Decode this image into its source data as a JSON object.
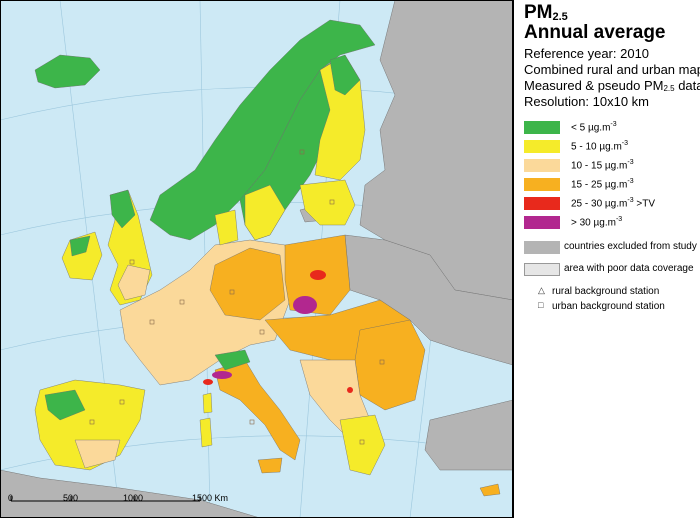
{
  "title": {
    "main": "PM",
    "subscript": "2.5",
    "line2": "Annual average"
  },
  "meta": {
    "reference_year": "Reference year: 2010",
    "map_type": "Combined rural and urban map",
    "data_prefix": "Measured & pseudo PM",
    "data_sub": "2.5",
    "data_suffix": " data",
    "resolution": "Resolution: 10x10 km"
  },
  "legend": {
    "classes": [
      {
        "label": "<  5",
        "unit": "µg.m",
        "exp": "-3",
        "extra": "",
        "color": "#3db54a"
      },
      {
        "label": "5 - 10",
        "unit": "µg.m",
        "exp": "-3",
        "extra": "",
        "color": "#f5eb2a"
      },
      {
        "label": "10 - 15",
        "unit": "µg.m",
        "exp": "-3",
        "extra": "",
        "color": "#fbd99a"
      },
      {
        "label": "15 - 25",
        "unit": "µg.m",
        "exp": "-3",
        "extra": "",
        "color": "#f7b020"
      },
      {
        "label": "25 - 30",
        "unit": "µg.m",
        "exp": "-3",
        "extra": ">TV",
        "color": "#e8291c"
      },
      {
        "label": ">  30",
        "unit": "µg.m",
        "exp": "-3",
        "extra": "",
        "color": "#b2278f"
      }
    ],
    "excluded": {
      "label": "countries excluded from study",
      "color": "#b4b4b4"
    },
    "poor_coverage": {
      "label": "area with poor data coverage",
      "color": "#e6e6e6"
    },
    "stations": [
      {
        "symbol": "△",
        "label": "rural background station"
      },
      {
        "symbol": "□",
        "label": "urban background station"
      }
    ]
  },
  "scale": {
    "ticks": [
      "0",
      "500",
      "1000",
      "1500 Km"
    ]
  },
  "colors": {
    "sea": "#cde9f5",
    "excluded": "#b4b4b4",
    "grid": "#8fbcd4"
  }
}
